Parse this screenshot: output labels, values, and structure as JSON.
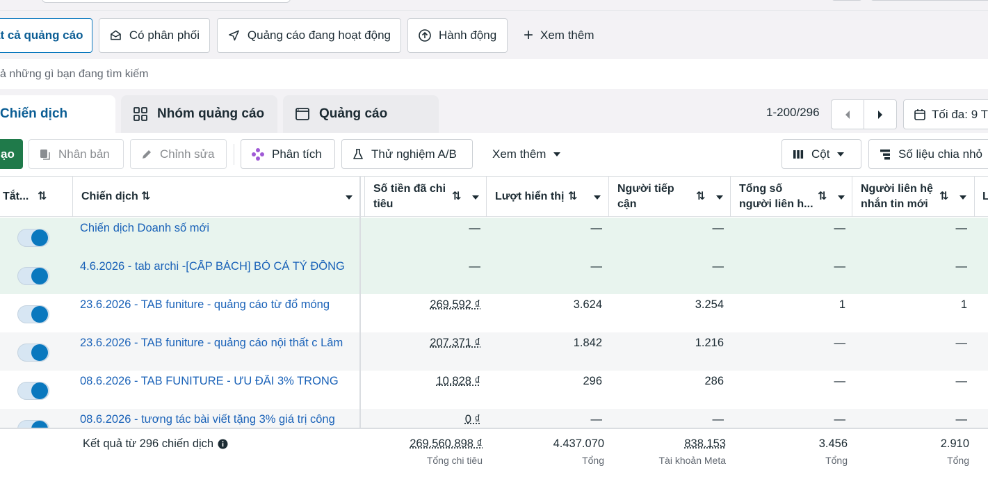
{
  "filters": {
    "all_ads": "ất cả quảng cáo",
    "delivered": "Có phân phối",
    "active_ads": "Quảng cáo đang hoạt động",
    "actions": "Hành động",
    "more": "Xem thêm"
  },
  "search_hint": "ả những gì bạn đang tìm kiếm",
  "tabs": {
    "campaigns": "Chiến dịch",
    "adsets": "Nhóm quảng cáo",
    "ads": "Quảng cáo"
  },
  "pagination": {
    "range": "1-200/296"
  },
  "date_button": "Tối đa: 9 T",
  "toolbar": {
    "create": "ạo",
    "duplicate": "Nhân bản",
    "edit": "Chỉnh sửa",
    "analyze": "Phân tích",
    "ab_test": "Thử nghiệm A/B",
    "more": "Xem thêm",
    "columns": "Cột",
    "breakdown": "Số liệu chia nhỏ"
  },
  "columns": {
    "toggle": "Tắt...",
    "campaign": "Chiến dịch",
    "spent": "Số tiền đã chi tiêu",
    "impressions": "Lượt hiển thị",
    "reach": "Người tiếp cận",
    "contacts": "Tổng số người liên h...",
    "new_msg": "Người liên hệ nhắn tin mới",
    "extra": "L"
  },
  "rows": [
    {
      "name": "Chiến dịch Doanh số mới",
      "spent": "—",
      "impressions": "—",
      "reach": "—",
      "contacts": "—",
      "new_msg": "—"
    },
    {
      "name": "4.6.2026 - tab archi -[CẤP BÁCH] BỎ CẢ TỶ ĐỒNG",
      "spent": "—",
      "impressions": "—",
      "reach": "—",
      "contacts": "—",
      "new_msg": "—"
    },
    {
      "name": "23.6.2026 - TAB funiture - quảng cáo từ đổ móng",
      "spent": "269.592 ₫",
      "impressions": "3.624",
      "reach": "3.254",
      "contacts": "1",
      "new_msg": "1"
    },
    {
      "name": "23.6.2026 - TAB funiture - quảng cáo nội thất c Lâm",
      "spent": "207.371 ₫",
      "impressions": "1.842",
      "reach": "1.216",
      "contacts": "—",
      "new_msg": "—"
    },
    {
      "name": "08.6.2026 - TAB FUNITURE - ƯU ĐÃI 3% TRONG",
      "spent": "10.828 ₫",
      "impressions": "296",
      "reach": "286",
      "contacts": "—",
      "new_msg": "—"
    },
    {
      "name": "08.6.2026 - tương tác bài viết tặng 3% giá trị công",
      "spent": "0 ₫",
      "impressions": "—",
      "reach": "—",
      "contacts": "—",
      "new_msg": "—"
    }
  ],
  "summary": {
    "label": "Kết quả từ 296 chiến dịch",
    "spent": "269.560.898 ₫",
    "spent_sub": "Tổng chi tiêu",
    "impressions": "4.437.070",
    "impressions_sub": "Tổng",
    "reach": "838.153",
    "reach_sub": "Tài khoản Meta",
    "contacts": "3.456",
    "contacts_sub": "Tổng",
    "new_msg": "2.910",
    "new_msg_sub": "Tổng"
  }
}
